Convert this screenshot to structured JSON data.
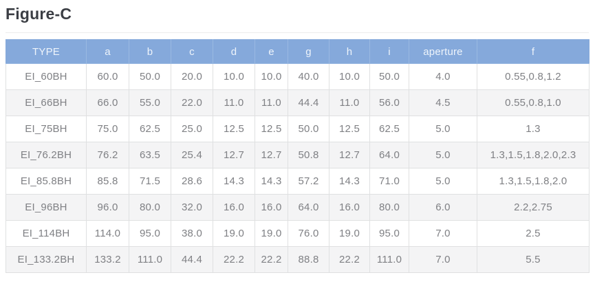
{
  "title": "Figure-C",
  "table": {
    "columns": [
      "TYPE",
      "a",
      "b",
      "c",
      "d",
      "e",
      "g",
      "h",
      "i",
      "aperture",
      "f"
    ],
    "rows": [
      [
        "EI_60BH",
        "60.0",
        "50.0",
        "20.0",
        "10.0",
        "10.0",
        "40.0",
        "10.0",
        "50.0",
        "4.0",
        "0.55,0.8,1.2"
      ],
      [
        "EI_66BH",
        "66.0",
        "55.0",
        "22.0",
        "11.0",
        "11.0",
        "44.4",
        "11.0",
        "56.0",
        "4.5",
        "0.55,0.8,1.0"
      ],
      [
        "EI_75BH",
        "75.0",
        "62.5",
        "25.0",
        "12.5",
        "12.5",
        "50.0",
        "12.5",
        "62.5",
        "5.0",
        "1.3"
      ],
      [
        "EI_76.2BH",
        "76.2",
        "63.5",
        "25.4",
        "12.7",
        "12.7",
        "50.8",
        "12.7",
        "64.0",
        "5.0",
        "1.3,1.5,1.8,2.0,2.3"
      ],
      [
        "EI_85.8BH",
        "85.8",
        "71.5",
        "28.6",
        "14.3",
        "14.3",
        "57.2",
        "14.3",
        "71.0",
        "5.0",
        "1.3,1.5,1.8,2.0"
      ],
      [
        "EI_96BH",
        "96.0",
        "80.0",
        "32.0",
        "16.0",
        "16.0",
        "64.0",
        "16.0",
        "80.0",
        "6.0",
        "2.2,2.75"
      ],
      [
        "EI_114BH",
        "114.0",
        "95.0",
        "38.0",
        "19.0",
        "19.0",
        "76.0",
        "19.0",
        "95.0",
        "7.0",
        "2.5"
      ],
      [
        "EI_133.2BH",
        "133.2",
        "111.0",
        "44.4",
        "22.2",
        "22.2",
        "88.8",
        "22.2",
        "111.0",
        "7.0",
        "5.5"
      ]
    ]
  },
  "colors": {
    "header_bg": "#85a9db",
    "header_text": "#eef4fb",
    "header_divider": "#9ab9e2",
    "row_text": "#7f8084",
    "row_alt_bg": "#f4f4f5",
    "border": "#dfe0e1",
    "title_text": "#3b3e44",
    "page_bg": "#ffffff"
  }
}
